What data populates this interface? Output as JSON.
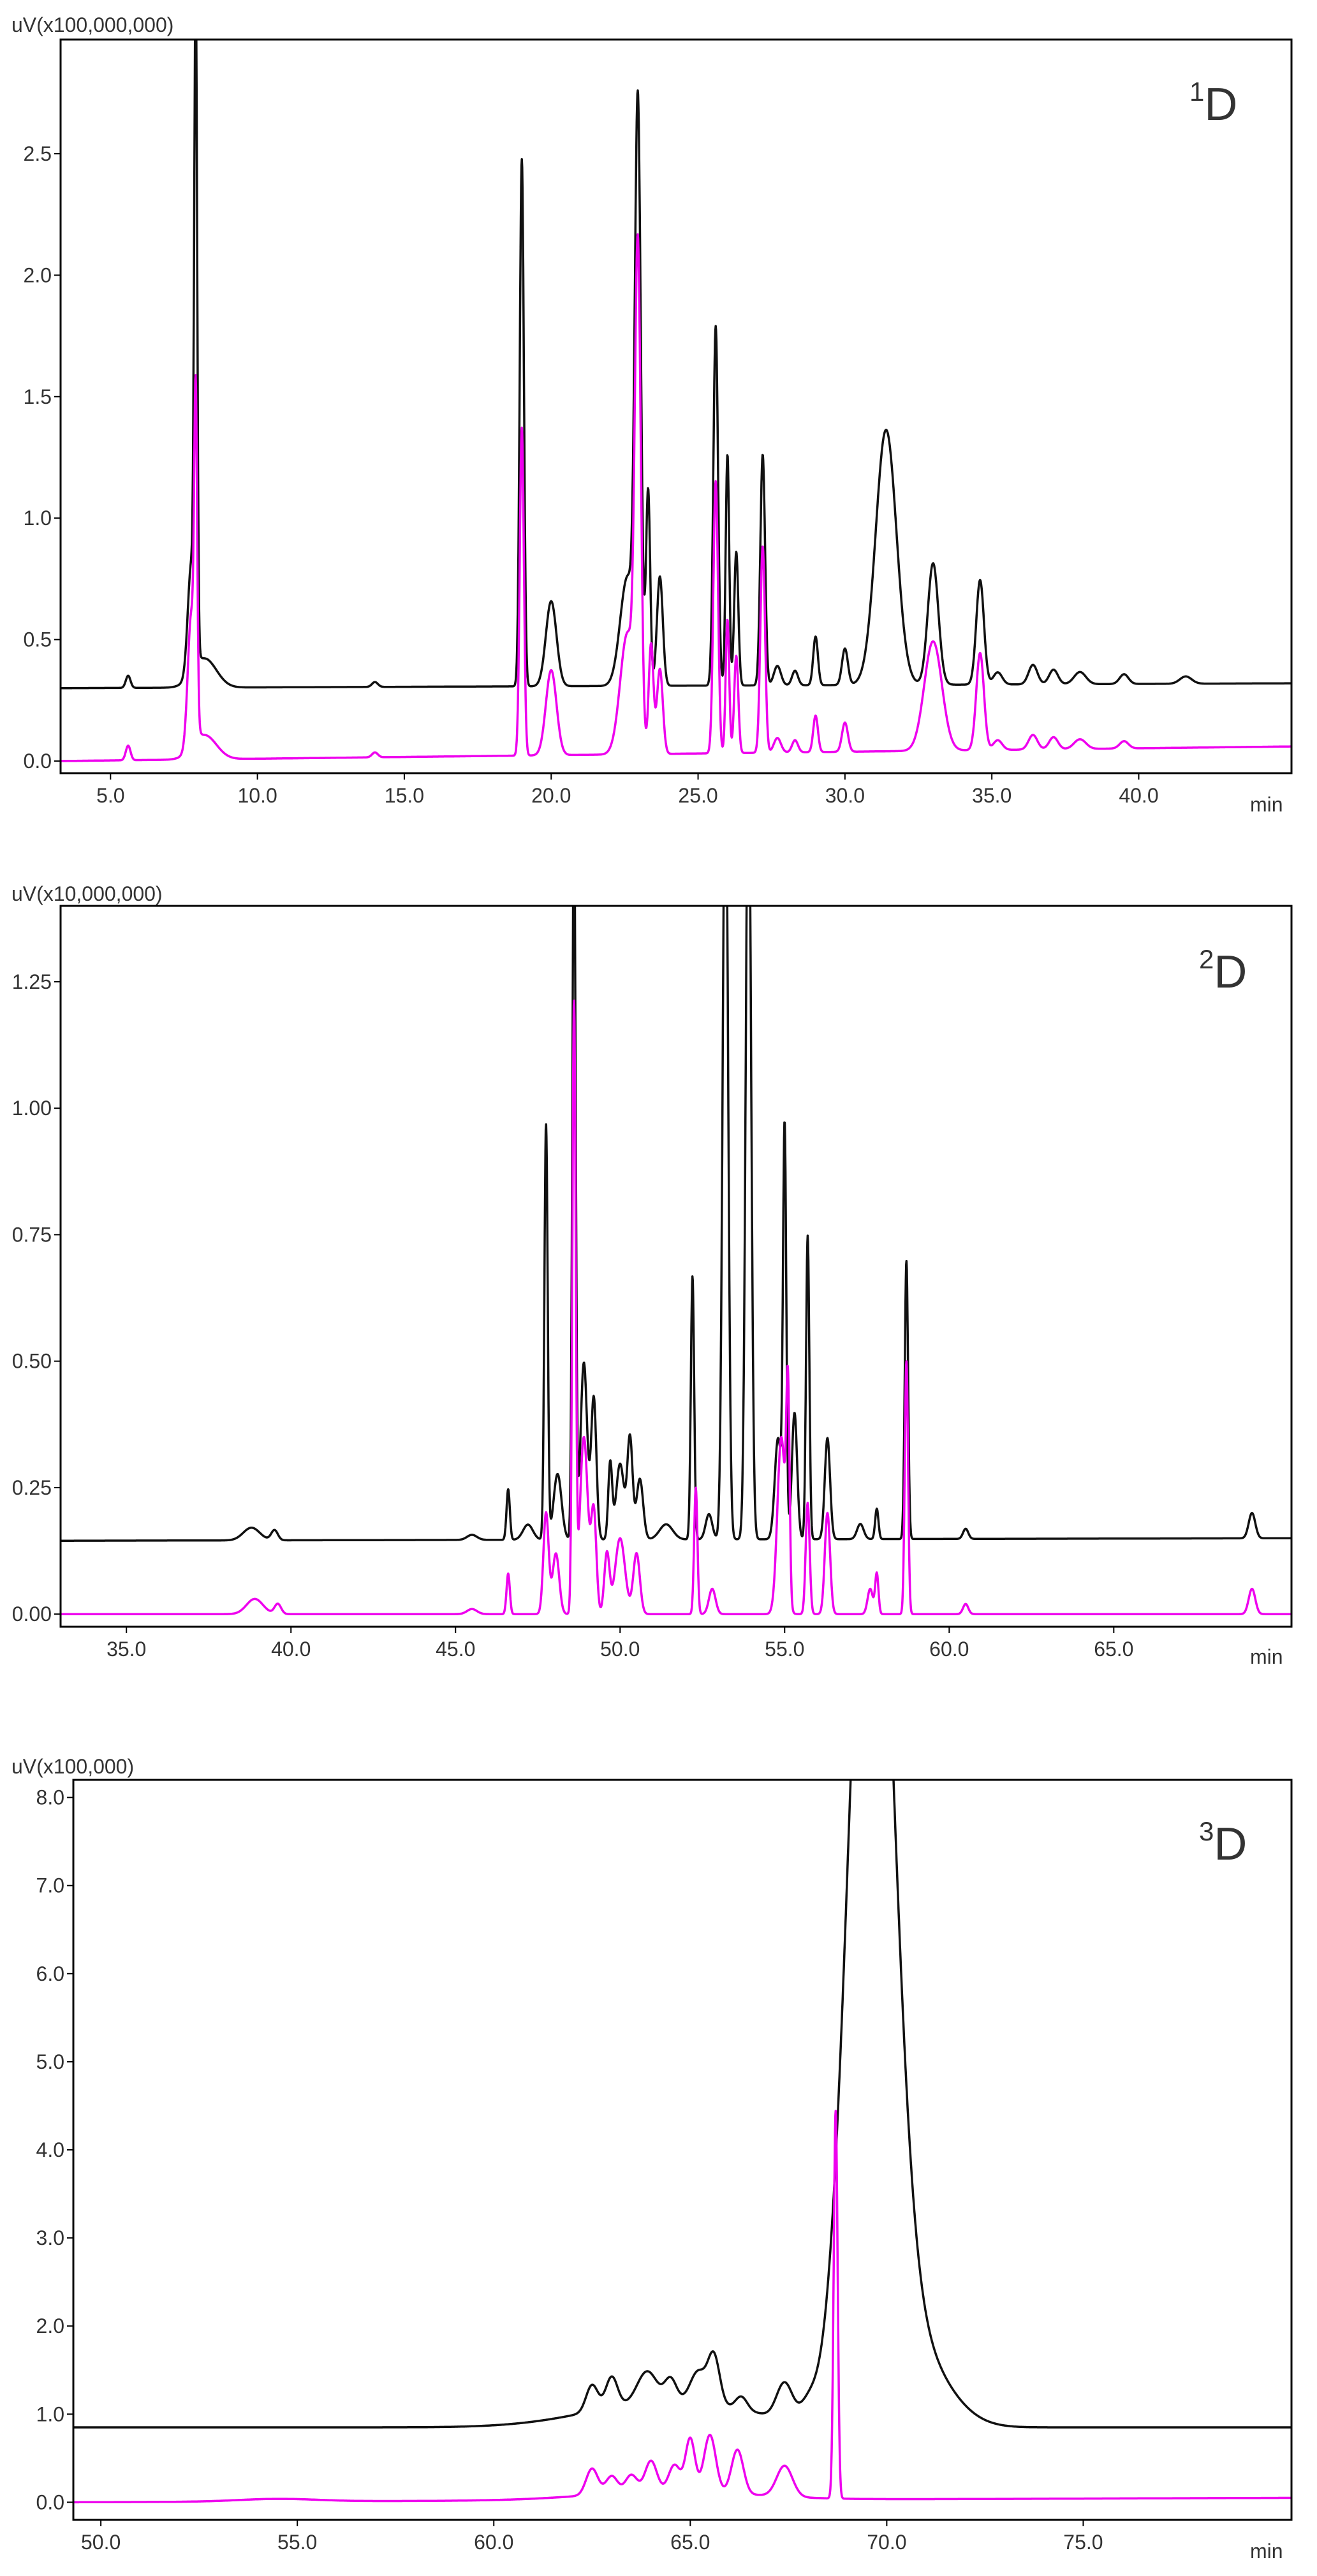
{
  "colors": {
    "trace_black": "#111111",
    "trace_magenta": "#ee00ee",
    "frame": "#000000",
    "text": "#333333"
  },
  "chart_data": [
    {
      "type": "line",
      "panel_label": {
        "superscript": "1",
        "text": "D"
      },
      "unit_label": "uV(x100,000,000)",
      "x_unit": "min",
      "xlim": [
        3.3,
        45.2
      ],
      "ylim": [
        -0.05,
        2.97
      ],
      "xticks": [
        5.0,
        10.0,
        15.0,
        20.0,
        25.0,
        30.0,
        35.0,
        40.0
      ],
      "xtick_labels": [
        "5.0",
        "10.0",
        "15.0",
        "20.0",
        "25.0",
        "30.0",
        "35.0",
        "40.0"
      ],
      "yticks": [
        0.0,
        0.5,
        1.0,
        1.5,
        2.0,
        2.5
      ],
      "ytick_labels": [
        "0.0",
        "0.5",
        "1.0",
        "1.5",
        "2.0",
        "2.5"
      ],
      "series": [
        {
          "color": "#111111",
          "baseline": 0.3,
          "baseline_end": 0.32,
          "peaks": [
            [
              5.6,
              0.05,
              0.08
            ],
            [
              7.75,
              0.45,
              0.12
            ],
            [
              7.9,
              2.65,
              0.05
            ],
            [
              8.2,
              0.12,
              0.4
            ],
            [
              14.0,
              0.02,
              0.1
            ],
            [
              19.0,
              2.17,
              0.07
            ],
            [
              20.0,
              0.35,
              0.18
            ],
            [
              22.6,
              0.45,
              0.25
            ],
            [
              22.95,
              2.28,
              0.1
            ],
            [
              23.3,
              0.8,
              0.07
            ],
            [
              23.7,
              0.45,
              0.1
            ],
            [
              25.6,
              1.48,
              0.08
            ],
            [
              26.0,
              0.95,
              0.06
            ],
            [
              26.3,
              0.55,
              0.07
            ],
            [
              27.2,
              0.95,
              0.08
            ],
            [
              27.7,
              0.08,
              0.12
            ],
            [
              28.3,
              0.06,
              0.1
            ],
            [
              29.0,
              0.2,
              0.08
            ],
            [
              30.0,
              0.15,
              0.1
            ],
            [
              31.4,
              1.05,
              0.35
            ],
            [
              33.0,
              0.5,
              0.18
            ],
            [
              34.6,
              0.43,
              0.13
            ],
            [
              35.2,
              0.05,
              0.15
            ],
            [
              36.4,
              0.08,
              0.15
            ],
            [
              37.1,
              0.06,
              0.15
            ],
            [
              38.0,
              0.05,
              0.2
            ],
            [
              39.5,
              0.04,
              0.15
            ],
            [
              41.6,
              0.03,
              0.2
            ]
          ]
        },
        {
          "color": "#ee00ee",
          "baseline": 0.0,
          "baseline_end": 0.06,
          "peaks": [
            [
              5.6,
              0.06,
              0.08
            ],
            [
              7.75,
              0.55,
              0.12
            ],
            [
              7.9,
              1.25,
              0.05
            ],
            [
              8.2,
              0.1,
              0.4
            ],
            [
              14.0,
              0.02,
              0.1
            ],
            [
              19.0,
              1.35,
              0.07
            ],
            [
              20.0,
              0.35,
              0.18
            ],
            [
              22.6,
              0.5,
              0.25
            ],
            [
              22.95,
              1.95,
              0.1
            ],
            [
              23.4,
              0.45,
              0.08
            ],
            [
              23.7,
              0.35,
              0.1
            ],
            [
              25.6,
              1.12,
              0.08
            ],
            [
              26.0,
              0.55,
              0.06
            ],
            [
              26.3,
              0.4,
              0.07
            ],
            [
              27.2,
              0.85,
              0.08
            ],
            [
              27.7,
              0.06,
              0.12
            ],
            [
              28.3,
              0.05,
              0.1
            ],
            [
              29.0,
              0.15,
              0.08
            ],
            [
              30.0,
              0.12,
              0.1
            ],
            [
              33.0,
              0.45,
              0.3
            ],
            [
              34.6,
              0.4,
              0.13
            ],
            [
              35.2,
              0.04,
              0.15
            ],
            [
              36.4,
              0.06,
              0.15
            ],
            [
              37.1,
              0.05,
              0.15
            ],
            [
              38.0,
              0.04,
              0.2
            ],
            [
              39.5,
              0.03,
              0.15
            ]
          ]
        }
      ]
    },
    {
      "type": "line",
      "panel_label": {
        "superscript": "2",
        "text": "D"
      },
      "unit_label": "uV(x10,000,000)",
      "x_unit": "min",
      "xlim": [
        33.0,
        70.4
      ],
      "ylim": [
        -0.025,
        1.4
      ],
      "xticks": [
        35.0,
        40.0,
        45.0,
        50.0,
        55.0,
        60.0,
        65.0
      ],
      "xtick_labels": [
        "35.0",
        "40.0",
        "45.0",
        "50.0",
        "55.0",
        "60.0",
        "65.0"
      ],
      "yticks": [
        0.0,
        0.25,
        0.5,
        0.75,
        1.0,
        1.25
      ],
      "ytick_labels": [
        "0.00",
        "0.25",
        "0.50",
        "0.75",
        "1.00",
        "1.25"
      ],
      "series": [
        {
          "color": "#111111",
          "baseline": 0.145,
          "baseline_end": 0.15,
          "peaks": [
            [
              38.8,
              0.025,
              0.25
            ],
            [
              39.5,
              0.02,
              0.1
            ],
            [
              45.5,
              0.01,
              0.15
            ],
            [
              46.6,
              0.1,
              0.05
            ],
            [
              47.2,
              0.03,
              0.15
            ],
            [
              47.75,
              0.82,
              0.05
            ],
            [
              48.1,
              0.13,
              0.12
            ],
            [
              48.6,
              1.45,
              0.05
            ],
            [
              48.9,
              0.35,
              0.1
            ],
            [
              49.2,
              0.28,
              0.08
            ],
            [
              49.7,
              0.15,
              0.06
            ],
            [
              50.0,
              0.15,
              0.12
            ],
            [
              50.3,
              0.2,
              0.08
            ],
            [
              50.6,
              0.12,
              0.1
            ],
            [
              51.4,
              0.03,
              0.2
            ],
            [
              52.2,
              0.52,
              0.05
            ],
            [
              52.7,
              0.05,
              0.1
            ],
            [
              53.2,
              1.6,
              0.08
            ],
            [
              53.9,
              1.6,
              0.08
            ],
            [
              54.8,
              0.2,
              0.1
            ],
            [
              55.0,
              0.8,
              0.05
            ],
            [
              55.3,
              0.25,
              0.08
            ],
            [
              55.7,
              0.6,
              0.05
            ],
            [
              56.3,
              0.2,
              0.08
            ],
            [
              57.3,
              0.03,
              0.1
            ],
            [
              57.8,
              0.06,
              0.05
            ],
            [
              58.7,
              0.55,
              0.05
            ],
            [
              60.5,
              0.02,
              0.08
            ],
            [
              69.2,
              0.05,
              0.1
            ]
          ]
        },
        {
          "color": "#ee00ee",
          "baseline": 0.0,
          "baseline_end": 0.0,
          "peaks": [
            [
              38.9,
              0.03,
              0.25
            ],
            [
              39.6,
              0.02,
              0.1
            ],
            [
              45.5,
              0.01,
              0.15
            ],
            [
              46.6,
              0.08,
              0.05
            ],
            [
              47.75,
              0.2,
              0.08
            ],
            [
              48.05,
              0.12,
              0.1
            ],
            [
              48.6,
              1.2,
              0.05
            ],
            [
              48.9,
              0.35,
              0.12
            ],
            [
              49.2,
              0.2,
              0.08
            ],
            [
              49.6,
              0.12,
              0.08
            ],
            [
              50.0,
              0.15,
              0.15
            ],
            [
              50.5,
              0.12,
              0.1
            ],
            [
              52.3,
              0.25,
              0.05
            ],
            [
              52.8,
              0.05,
              0.1
            ],
            [
              54.9,
              0.35,
              0.12
            ],
            [
              55.1,
              0.4,
              0.05
            ],
            [
              55.7,
              0.22,
              0.06
            ],
            [
              56.3,
              0.2,
              0.08
            ],
            [
              57.6,
              0.05,
              0.08
            ],
            [
              57.8,
              0.08,
              0.05
            ],
            [
              58.7,
              0.5,
              0.05
            ],
            [
              60.5,
              0.02,
              0.08
            ],
            [
              69.2,
              0.05,
              0.1
            ]
          ]
        }
      ]
    },
    {
      "type": "line",
      "panel_label": {
        "superscript": "3",
        "text": "D"
      },
      "unit_label": "uV(x100,000)",
      "x_unit": "min",
      "xlim": [
        49.3,
        80.3
      ],
      "ylim": [
        -0.2,
        8.2
      ],
      "xticks": [
        50.0,
        55.0,
        60.0,
        65.0,
        70.0,
        75.0
      ],
      "xtick_labels": [
        "50.0",
        "55.0",
        "60.0",
        "65.0",
        "70.0",
        "75.0"
      ],
      "yticks": [
        0.0,
        1.0,
        2.0,
        3.0,
        4.0,
        5.0,
        6.0,
        7.0,
        8.0
      ],
      "ytick_labels": [
        "0.0",
        "1.0",
        "2.0",
        "3.0",
        "4.0",
        "5.0",
        "6.0",
        "7.0",
        "8.0"
      ],
      "series": [
        {
          "color": "#111111",
          "baseline": 0.85,
          "baseline_end": 0.85,
          "peaks": [
            [
              64.5,
              0.3,
              2.0
            ],
            [
              62.5,
              0.3,
              0.15
            ],
            [
              63.0,
              0.35,
              0.15
            ],
            [
              63.9,
              0.35,
              0.25
            ],
            [
              64.5,
              0.25,
              0.15
            ],
            [
              65.2,
              0.35,
              0.2
            ],
            [
              65.6,
              0.55,
              0.15
            ],
            [
              66.3,
              0.15,
              0.15
            ],
            [
              67.4,
              0.4,
              0.2
            ],
            [
              68.0,
              0.15,
              0.2
            ],
            [
              69.6,
              11.0,
              0.55
            ],
            [
              70.5,
              1.0,
              0.9
            ]
          ]
        },
        {
          "color": "#ee00ee",
          "baseline": 0.0,
          "baseline_end": 0.05,
          "peaks": [
            [
              54.5,
              0.03,
              1.0
            ],
            [
              64.5,
              0.1,
              2.0
            ],
            [
              62.5,
              0.3,
              0.15
            ],
            [
              63.0,
              0.2,
              0.15
            ],
            [
              63.5,
              0.2,
              0.15
            ],
            [
              64.0,
              0.35,
              0.15
            ],
            [
              64.6,
              0.3,
              0.15
            ],
            [
              65.0,
              0.6,
              0.12
            ],
            [
              65.5,
              0.65,
              0.15
            ],
            [
              66.2,
              0.5,
              0.15
            ],
            [
              67.4,
              0.35,
              0.2
            ],
            [
              68.7,
              4.4,
              0.05
            ]
          ]
        }
      ]
    }
  ]
}
